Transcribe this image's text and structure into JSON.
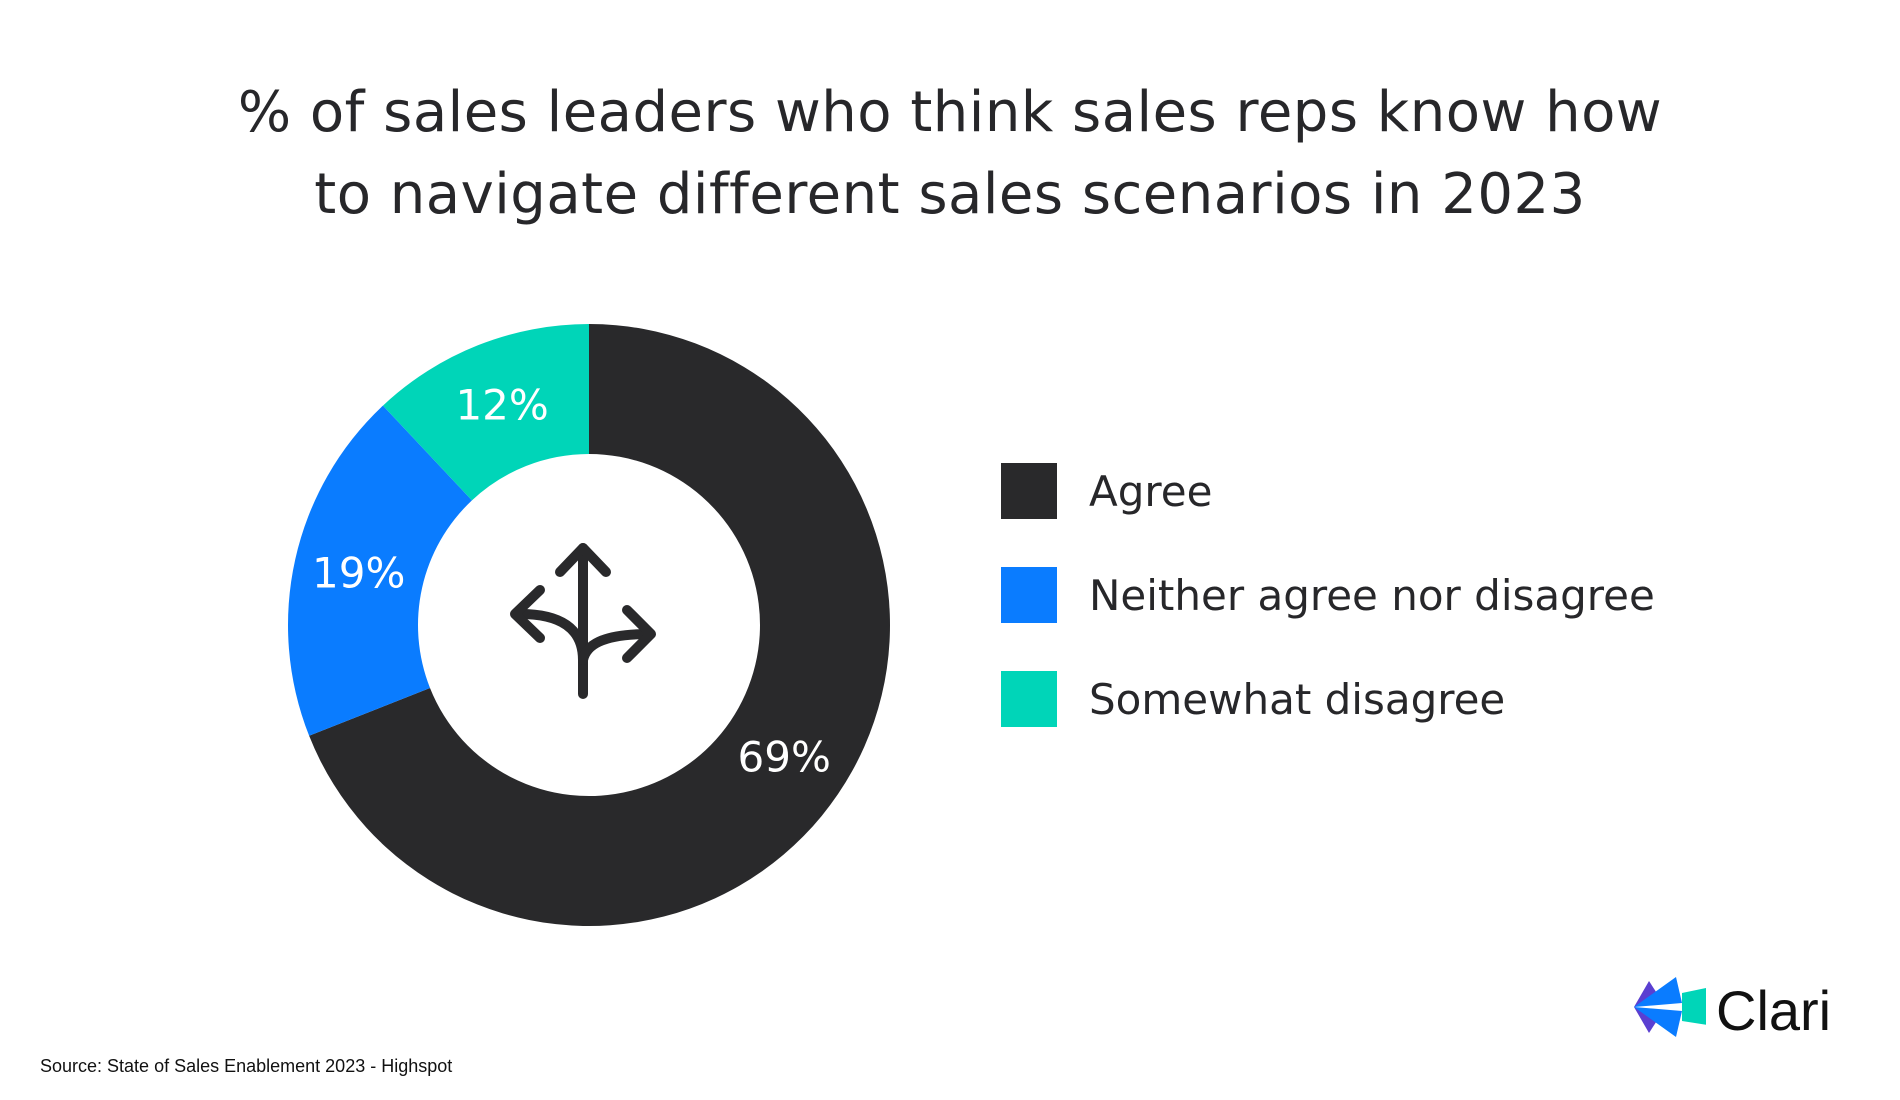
{
  "chart_data": {
    "type": "pie",
    "donut": true,
    "title": "% of sales leaders who think sales reps know how to navigate different sales scenarios in 2023",
    "title_lines": [
      "% of sales leaders who think sales reps know how",
      "to navigate different sales scenarios in 2023"
    ],
    "categories": [
      "Agree",
      "Neither agree nor disagree",
      "Somewhat disagree"
    ],
    "values": [
      69,
      19,
      12
    ],
    "data_labels": [
      "69%",
      "19%",
      "12%"
    ],
    "colors": [
      "#29292b",
      "#0a7cff",
      "#00d5b8"
    ],
    "legend_position": "right",
    "center_icon": "split-arrows-icon"
  },
  "source": "Source: State of Sales Enablement 2023 - Highspot",
  "logo": {
    "text": "Clari",
    "colors": [
      "#5a3fd1",
      "#0a7cff",
      "#00d5b8"
    ]
  }
}
